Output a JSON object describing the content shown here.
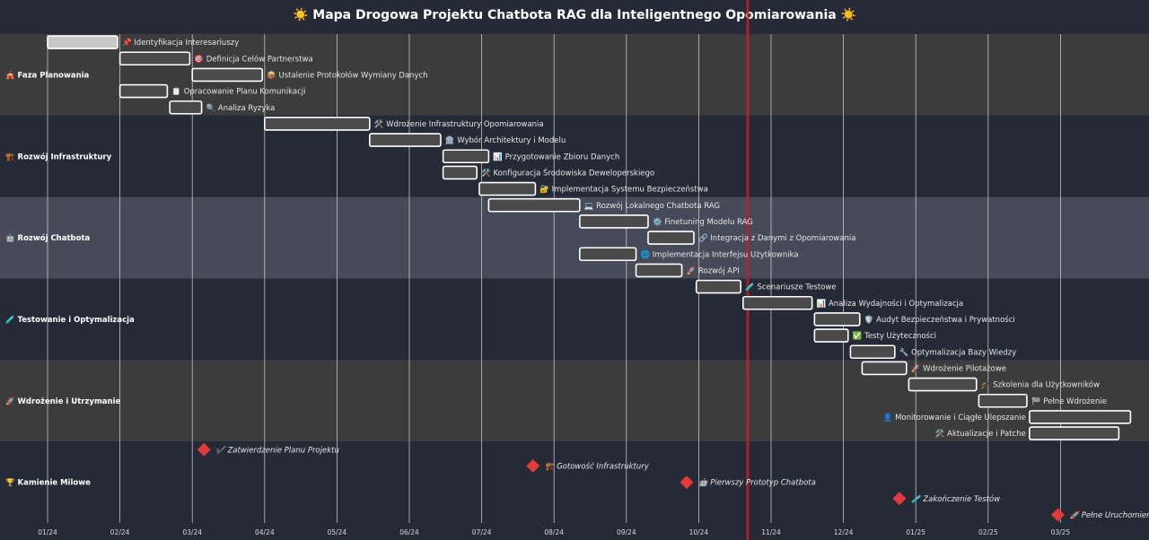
{
  "title": "☀️ Mapa Drogowa Projektu Chatbota RAG dla Inteligentnego Opomiarowania ☀️",
  "chart_data": {
    "type": "gantt",
    "title": "☀️ Mapa Drogowa Projektu Chatbota RAG dla Inteligentnego Opomiarowania ☀️",
    "x_ticks": [
      "01/24",
      "02/24",
      "03/24",
      "04/24",
      "05/24",
      "06/24",
      "07/24",
      "08/24",
      "09/24",
      "10/24",
      "11/24",
      "12/24",
      "01/25",
      "02/25",
      "03/25"
    ],
    "x_range": [
      "2024-01-01",
      "2025-03-31"
    ],
    "today_marker": "2024-10-22",
    "colors": {
      "background": "#252a36",
      "band_a": "#3b3c3b",
      "band_b": "#474b59",
      "bar_stroke": "#ffffff",
      "bar_fill": "#4a4a4a",
      "first_bar_fill": "#c8c8c8",
      "milestone": "#e03a3a",
      "today_line": "#c0202a",
      "grid": "#dddddd"
    },
    "phases": [
      {
        "name": "🎪 Faza Planowania",
        "band": "band_a",
        "tasks": [
          {
            "name": "📌 Identyfikacja Interesariuszy",
            "start": "2024-01-01",
            "end": "2024-01-31"
          },
          {
            "name": "🎯 Definicja Celów Partnerstwa",
            "start": "2024-02-01",
            "end": "2024-02-29"
          },
          {
            "name": "📦 Ustalenie Protokołów Wymiany Danych",
            "start": "2024-03-01",
            "end": "2024-03-31"
          },
          {
            "name": "📋 Opracowanie Planu Komunikacji",
            "start": "2024-02-01",
            "end": "2024-02-20"
          },
          {
            "name": "🔍 Analiza Ryzyka",
            "start": "2024-02-21",
            "end": "2024-03-05"
          }
        ]
      },
      {
        "name": "🏗️ Rozwój Infrastruktury",
        "band": "bg",
        "tasks": [
          {
            "name": "🛠️ Wdrożenie Infrastruktury Opomiarowania",
            "start": "2024-04-01",
            "end": "2024-05-15"
          },
          {
            "name": "🏛️ Wybór Architektury i Modelu",
            "start": "2024-05-15",
            "end": "2024-06-14"
          },
          {
            "name": "📊 Przygotowanie Zbioru Danych",
            "start": "2024-06-15",
            "end": "2024-07-04"
          },
          {
            "name": "🛠️ Konfiguracja Środowiska Deweloperskiego",
            "start": "2024-06-15",
            "end": "2024-06-29"
          },
          {
            "name": "🔐 Implementacja Systemu Bezpieczeństwa",
            "start": "2024-06-30",
            "end": "2024-07-24"
          }
        ]
      },
      {
        "name": "🤖 Rozwój Chatbota",
        "band": "band_b",
        "tasks": [
          {
            "name": "💻 Rozwój Lokalnego Chatbota RAG",
            "start": "2024-07-04",
            "end": "2024-08-12"
          },
          {
            "name": "⚙️ Finetuning Modelu RAG",
            "start": "2024-08-12",
            "end": "2024-09-10"
          },
          {
            "name": "🔗 Integracja z Danymi z Opomiarowania",
            "start": "2024-09-10",
            "end": "2024-09-29"
          },
          {
            "name": "🌐 Implementacja Interfejsu Użytkownika",
            "start": "2024-08-12",
            "end": "2024-09-05"
          },
          {
            "name": "🚀 Rozwój API",
            "start": "2024-09-05",
            "end": "2024-09-24"
          }
        ]
      },
      {
        "name": "🧪 Testowanie i Optymalizacja",
        "band": "bg",
        "tasks": [
          {
            "name": "🧪 Scenariusze Testowe",
            "start": "2024-09-30",
            "end": "2024-10-19"
          },
          {
            "name": "📊 Analiza Wydajności i Optymalizacja",
            "start": "2024-10-20",
            "end": "2024-11-18"
          },
          {
            "name": "🛡️ Audyt Bezpieczeństwa i Prywatności",
            "start": "2024-11-19",
            "end": "2024-12-08"
          },
          {
            "name": "✅ Testy Użyteczności",
            "start": "2024-11-19",
            "end": "2024-12-03"
          },
          {
            "name": "🔧 Optymalizacja Bazy Wiedzy",
            "start": "2024-12-04",
            "end": "2024-12-23"
          }
        ]
      },
      {
        "name": "🚀 Wdrożenie i Utrzymanie",
        "band": "band_a",
        "tasks": [
          {
            "name": "🚀 Wdrożenie Pilotażowe",
            "start": "2024-12-09",
            "end": "2024-12-28"
          },
          {
            "name": "🎓 Szkolenia dla Użytkowników",
            "start": "2024-12-29",
            "end": "2025-01-27"
          },
          {
            "name": "🏁 Pełne Wdrożenie",
            "start": "2025-01-28",
            "end": "2025-02-16"
          },
          {
            "name": "👤 Monitorowanie i Ciągłe Ulepszanie",
            "start": "2025-02-17",
            "end": "2025-03-31",
            "label_side": "left"
          },
          {
            "name": "🛠️ Aktualizacje i Patche",
            "start": "2025-02-17",
            "end": "2025-03-26",
            "label_side": "left"
          }
        ]
      },
      {
        "name": "🏆 Kamienie Milowe",
        "band": "bg",
        "milestones": [
          {
            "name": "✔️ Zatwierdzenie Planu Projektu",
            "date": "2024-03-06"
          },
          {
            "name": "🏗️ Gotowość Infrastruktury",
            "date": "2024-07-23"
          },
          {
            "name": "🤖 Pierwszy Prototyp Chatbota",
            "date": "2024-09-26"
          },
          {
            "name": "🧪 Zakończenie Testów",
            "date": "2024-12-25"
          },
          {
            "name": "🚀 Pełne Uruchomienie",
            "date": "2025-02-28"
          }
        ]
      }
    ]
  }
}
